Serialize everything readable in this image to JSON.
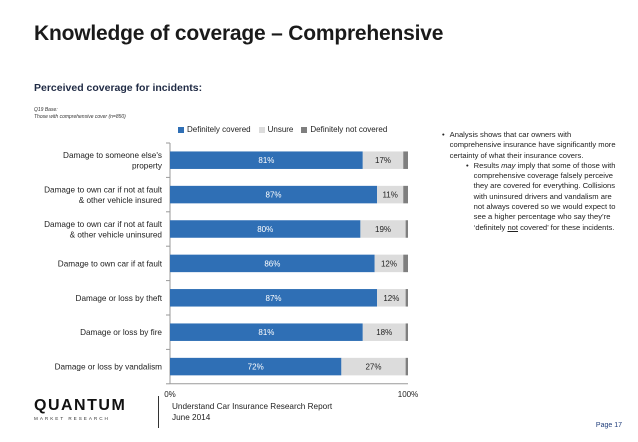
{
  "slide": {
    "title": "Knowledge of coverage – Comprehensive",
    "subtitle": "Perceived coverage for incidents:",
    "base_line1": "Q19 Base:",
    "base_line2": "Those with comprehensive cover (n=850)",
    "notes": {
      "bullet1": "Analysis shows that car owners with comprehensive insurance have significantly more certainty of what their insurance covers.",
      "bullet2_pre": "Results ",
      "bullet2_may": "may",
      "bullet2_mid": " imply that some of those with comprehensive coverage falsely perceive they are covered for everything. Collisions with uninsured drivers and vandalism are not always covered so we would expect to see a higher percentage who say they’re ‘definitely ",
      "bullet2_not": "not",
      "bullet2_post": " covered’ for these incidents."
    },
    "footer_line1": "Understand Car Insurance Research Report",
    "footer_line2": "June 2014",
    "logo_main": "QUANTUM",
    "logo_sub": "MARKET RESEARCH",
    "page": "Page 17"
  },
  "chart_data": {
    "type": "bar",
    "orientation": "horizontal",
    "stacked": true,
    "categories": [
      [
        "Damage to someone else's",
        "property"
      ],
      [
        "Damage to own car if not at fault",
        "& other vehicle insured"
      ],
      [
        "Damage to own car if not at fault",
        "& other vehicle uninsured"
      ],
      [
        "Damage to own car if at fault"
      ],
      [
        "Damage or loss by theft"
      ],
      [
        "Damage or loss by fire"
      ],
      [
        "Damage or loss by vandalism"
      ]
    ],
    "series": [
      {
        "name": "Definitely covered",
        "color": "#2f6fb5",
        "values": [
          81,
          87,
          80,
          86,
          87,
          81,
          72
        ],
        "labels": [
          "81%",
          "87%",
          "80%",
          "86%",
          "87%",
          "81%",
          "72%"
        ]
      },
      {
        "name": "Unsure",
        "color": "#dcdcdc",
        "values": [
          17,
          11,
          19,
          12,
          12,
          18,
          27
        ],
        "labels": [
          "17%",
          "11%",
          "19%",
          "12%",
          "12%",
          "18%",
          "27%"
        ]
      },
      {
        "name": "Definitely not covered",
        "color": "#7f7f7f",
        "values": [
          2,
          2,
          1,
          2,
          1,
          1,
          1
        ]
      }
    ],
    "x_ticks": [
      "0%",
      "100%"
    ],
    "xlim": [
      0,
      100
    ],
    "legend_position": "top"
  }
}
